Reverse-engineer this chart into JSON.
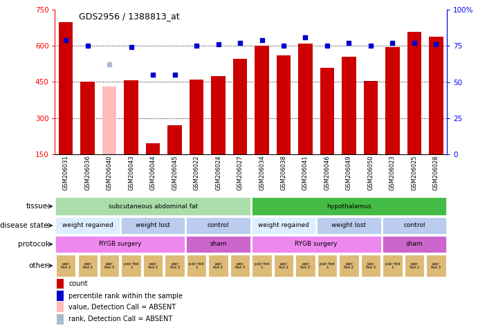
{
  "title": "GDS2956 / 1388813_at",
  "samples": [
    "GSM206031",
    "GSM206036",
    "GSM206040",
    "GSM206043",
    "GSM206044",
    "GSM206045",
    "GSM206022",
    "GSM206024",
    "GSM206027",
    "GSM206034",
    "GSM206038",
    "GSM206041",
    "GSM206046",
    "GSM206049",
    "GSM206050",
    "GSM206023",
    "GSM206025",
    "GSM206028"
  ],
  "bar_values": [
    700,
    452,
    430,
    456,
    195,
    270,
    460,
    475,
    545,
    600,
    560,
    610,
    510,
    555,
    455,
    595,
    660,
    638
  ],
  "bar_absent": [
    false,
    false,
    true,
    false,
    false,
    false,
    false,
    false,
    false,
    false,
    false,
    false,
    false,
    false,
    false,
    false,
    false,
    false
  ],
  "rank_values": [
    79,
    75,
    62,
    74,
    55,
    55,
    75,
    76,
    77,
    79,
    75,
    81,
    75,
    77,
    75,
    77,
    77,
    76
  ],
  "rank_absent": [
    false,
    false,
    true,
    false,
    false,
    false,
    false,
    false,
    false,
    false,
    false,
    false,
    false,
    false,
    false,
    false,
    false,
    false
  ],
  "ylim_left": [
    150,
    750
  ],
  "ylim_right": [
    0,
    100
  ],
  "left_ticks": [
    150,
    300,
    450,
    600,
    750
  ],
  "right_ticks": [
    0,
    25,
    50,
    75,
    100
  ],
  "right_tick_labels": [
    "0",
    "25",
    "50",
    "75",
    "100%"
  ],
  "bar_color_normal": "#cc0000",
  "bar_color_absent": "#ffbbbb",
  "rank_color_normal": "#0000cc",
  "rank_color_absent": "#aabbcc",
  "tissue_groups": [
    {
      "label": "subcutaneous abdominal fat",
      "start": 0,
      "end": 9,
      "color": "#aaddaa"
    },
    {
      "label": "hypothalamus",
      "start": 9,
      "end": 18,
      "color": "#44bb44"
    }
  ],
  "disease_groups": [
    {
      "label": "weight regained",
      "start": 0,
      "end": 3,
      "color": "#ddeeff"
    },
    {
      "label": "weight lost",
      "start": 3,
      "end": 6,
      "color": "#bbccee"
    },
    {
      "label": "control",
      "start": 6,
      "end": 9,
      "color": "#bbccee"
    },
    {
      "label": "weight regained",
      "start": 9,
      "end": 12,
      "color": "#ddeeff"
    },
    {
      "label": "weight lost",
      "start": 12,
      "end": 15,
      "color": "#bbccee"
    },
    {
      "label": "control",
      "start": 15,
      "end": 18,
      "color": "#bbccee"
    }
  ],
  "protocol_groups": [
    {
      "label": "RYGB surgery",
      "start": 0,
      "end": 6,
      "color": "#ee88ee"
    },
    {
      "label": "sham",
      "start": 6,
      "end": 9,
      "color": "#cc66cc"
    },
    {
      "label": "RYGB surgery",
      "start": 9,
      "end": 15,
      "color": "#ee88ee"
    },
    {
      "label": "sham",
      "start": 15,
      "end": 18,
      "color": "#cc66cc"
    }
  ],
  "other_groups": [
    {
      "label": "pair\nfed 1",
      "start": 0,
      "end": 1
    },
    {
      "label": "pair\nfed 2",
      "start": 1,
      "end": 2
    },
    {
      "label": "pair\nfed 3",
      "start": 2,
      "end": 3
    },
    {
      "label": "pair fed\n1",
      "start": 3,
      "end": 4
    },
    {
      "label": "pair\nfed 2",
      "start": 4,
      "end": 5
    },
    {
      "label": "pair\nfed 3",
      "start": 5,
      "end": 6
    },
    {
      "label": "pair fed\n1",
      "start": 6,
      "end": 7
    },
    {
      "label": "pair\nfed 2",
      "start": 7,
      "end": 8
    },
    {
      "label": "pair\nfed 3",
      "start": 8,
      "end": 9
    },
    {
      "label": "pair fed\n1",
      "start": 9,
      "end": 10
    },
    {
      "label": "pair\nfed 2",
      "start": 10,
      "end": 11
    },
    {
      "label": "pair\nfed 3",
      "start": 11,
      "end": 12
    },
    {
      "label": "pair fed\n1",
      "start": 12,
      "end": 13
    },
    {
      "label": "pair\nfed 2",
      "start": 13,
      "end": 14
    },
    {
      "label": "pair\nfed 3",
      "start": 14,
      "end": 15
    },
    {
      "label": "pair fed\n1",
      "start": 15,
      "end": 16
    },
    {
      "label": "pair\nfed 2",
      "start": 16,
      "end": 17
    },
    {
      "label": "pair\nfed 3",
      "start": 17,
      "end": 18
    }
  ],
  "other_color": "#ddbb77",
  "row_labels": [
    "tissue",
    "disease state",
    "protocol",
    "other"
  ],
  "legend_items": [
    {
      "color": "#cc0000",
      "label": "count"
    },
    {
      "color": "#0000cc",
      "label": "percentile rank within the sample"
    },
    {
      "color": "#ffbbbb",
      "label": "value, Detection Call = ABSENT"
    },
    {
      "color": "#aabbcc",
      "label": "rank, Detection Call = ABSENT"
    }
  ]
}
